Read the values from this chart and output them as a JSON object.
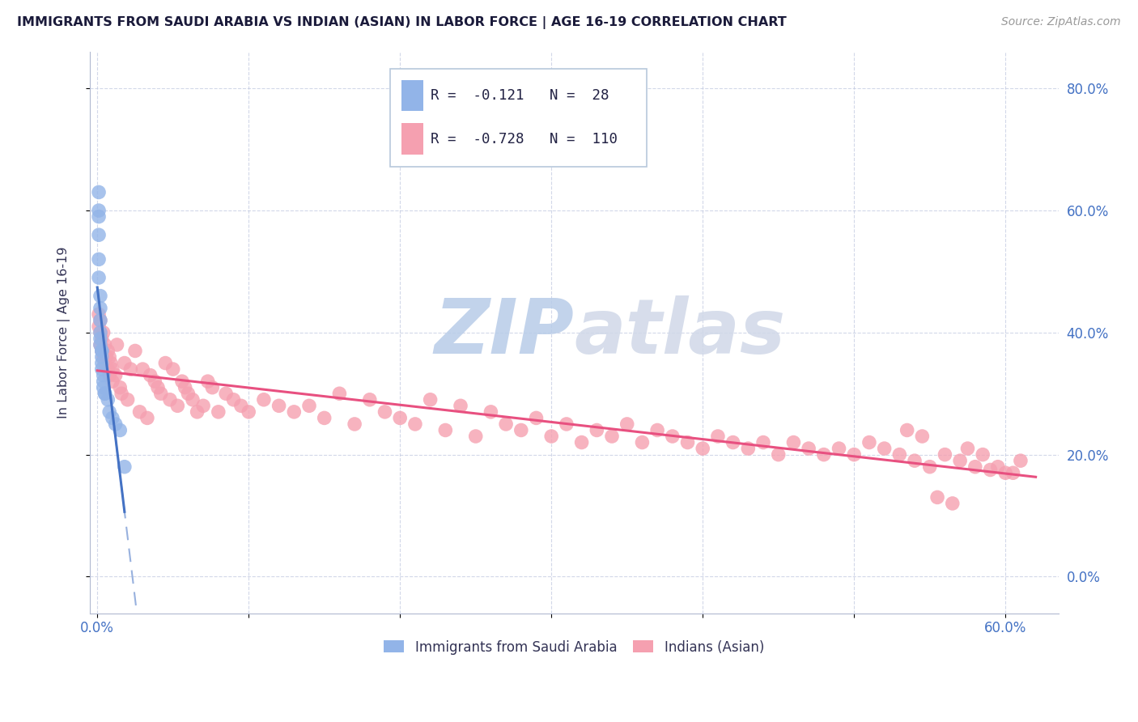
{
  "title": "IMMIGRANTS FROM SAUDI ARABIA VS INDIAN (ASIAN) IN LABOR FORCE | AGE 16-19 CORRELATION CHART",
  "source": "Source: ZipAtlas.com",
  "ylabel": "In Labor Force | Age 16-19",
  "x_tick_labels": [
    "0.0%",
    "",
    "",
    "",
    "",
    "",
    "60.0%"
  ],
  "x_ticks": [
    0.0,
    0.1,
    0.2,
    0.3,
    0.4,
    0.5,
    0.6
  ],
  "y_ticks": [
    0.0,
    0.2,
    0.4,
    0.6,
    0.8
  ],
  "y_tick_labels_right": [
    "0.0%",
    "20.0%",
    "40.0%",
    "60.0%",
    "80.0%"
  ],
  "xlim": [
    -0.005,
    0.635
  ],
  "ylim": [
    -0.06,
    0.86
  ],
  "saudi_R": -0.121,
  "saudi_N": 28,
  "indian_R": -0.728,
  "indian_N": 110,
  "saudi_color": "#92b4e8",
  "indian_color": "#f5a0b0",
  "saudi_line_color": "#4472c4",
  "indian_line_color": "#e85080",
  "watermark": "ZIPatlas",
  "watermark_color": "#c8d8f0",
  "legend_saudi_label": "R =  -0.121   N =  28",
  "legend_indian_label": "R =  -0.728   N =  110",
  "bottom_legend_saudi": "Immigrants from Saudi Arabia",
  "bottom_legend_indian": "Indians (Asian)",
  "saudi_x": [
    0.001,
    0.001,
    0.001,
    0.001,
    0.001,
    0.001,
    0.002,
    0.002,
    0.002,
    0.002,
    0.002,
    0.002,
    0.003,
    0.003,
    0.003,
    0.003,
    0.003,
    0.004,
    0.004,
    0.004,
    0.005,
    0.005,
    0.007,
    0.008,
    0.01,
    0.012,
    0.015,
    0.018
  ],
  "saudi_y": [
    0.63,
    0.6,
    0.59,
    0.56,
    0.52,
    0.49,
    0.46,
    0.44,
    0.42,
    0.4,
    0.39,
    0.38,
    0.37,
    0.37,
    0.36,
    0.35,
    0.34,
    0.33,
    0.32,
    0.31,
    0.3,
    0.3,
    0.29,
    0.27,
    0.26,
    0.25,
    0.24,
    0.18
  ],
  "indian_x": [
    0.001,
    0.001,
    0.002,
    0.002,
    0.002,
    0.003,
    0.003,
    0.004,
    0.004,
    0.005,
    0.005,
    0.006,
    0.007,
    0.007,
    0.008,
    0.008,
    0.009,
    0.01,
    0.01,
    0.012,
    0.013,
    0.015,
    0.016,
    0.018,
    0.02,
    0.022,
    0.025,
    0.028,
    0.03,
    0.033,
    0.035,
    0.038,
    0.04,
    0.042,
    0.045,
    0.048,
    0.05,
    0.053,
    0.056,
    0.058,
    0.06,
    0.063,
    0.066,
    0.07,
    0.073,
    0.076,
    0.08,
    0.085,
    0.09,
    0.095,
    0.1,
    0.11,
    0.12,
    0.13,
    0.14,
    0.15,
    0.16,
    0.17,
    0.18,
    0.19,
    0.2,
    0.21,
    0.22,
    0.23,
    0.24,
    0.25,
    0.26,
    0.27,
    0.28,
    0.29,
    0.3,
    0.31,
    0.32,
    0.33,
    0.34,
    0.35,
    0.36,
    0.37,
    0.38,
    0.39,
    0.4,
    0.41,
    0.42,
    0.43,
    0.44,
    0.45,
    0.46,
    0.47,
    0.48,
    0.49,
    0.5,
    0.51,
    0.52,
    0.53,
    0.54,
    0.55,
    0.56,
    0.57,
    0.58,
    0.59,
    0.6,
    0.61,
    0.555,
    0.565,
    0.575,
    0.585,
    0.595,
    0.605,
    0.535,
    0.545
  ],
  "indian_y": [
    0.41,
    0.43,
    0.4,
    0.38,
    0.42,
    0.37,
    0.39,
    0.36,
    0.4,
    0.35,
    0.38,
    0.36,
    0.37,
    0.34,
    0.36,
    0.33,
    0.35,
    0.34,
    0.32,
    0.33,
    0.38,
    0.31,
    0.3,
    0.35,
    0.29,
    0.34,
    0.37,
    0.27,
    0.34,
    0.26,
    0.33,
    0.32,
    0.31,
    0.3,
    0.35,
    0.29,
    0.34,
    0.28,
    0.32,
    0.31,
    0.3,
    0.29,
    0.27,
    0.28,
    0.32,
    0.31,
    0.27,
    0.3,
    0.29,
    0.28,
    0.27,
    0.29,
    0.28,
    0.27,
    0.28,
    0.26,
    0.3,
    0.25,
    0.29,
    0.27,
    0.26,
    0.25,
    0.29,
    0.24,
    0.28,
    0.23,
    0.27,
    0.25,
    0.24,
    0.26,
    0.23,
    0.25,
    0.22,
    0.24,
    0.23,
    0.25,
    0.22,
    0.24,
    0.23,
    0.22,
    0.21,
    0.23,
    0.22,
    0.21,
    0.22,
    0.2,
    0.22,
    0.21,
    0.2,
    0.21,
    0.2,
    0.22,
    0.21,
    0.2,
    0.19,
    0.18,
    0.2,
    0.19,
    0.18,
    0.175,
    0.17,
    0.19,
    0.13,
    0.12,
    0.21,
    0.2,
    0.18,
    0.17,
    0.24,
    0.23
  ]
}
